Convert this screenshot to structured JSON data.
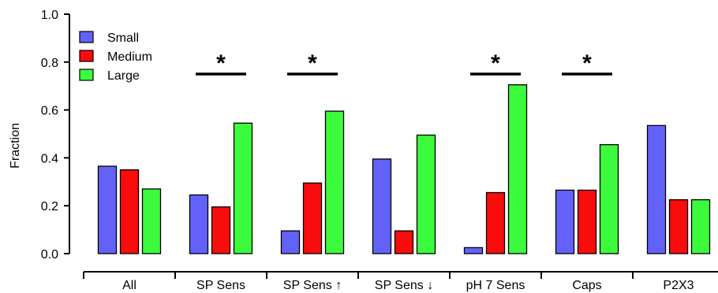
{
  "chart_data": {
    "type": "bar",
    "ylabel": "Fraction",
    "xlabel": "",
    "ylim": [
      0,
      1.0
    ],
    "yticks": [
      0.0,
      0.2,
      0.4,
      0.6,
      0.8,
      1.0
    ],
    "ytick_labels": [
      "0.0",
      "0.2",
      "0.4",
      "0.6",
      "0.8",
      "1.0"
    ],
    "categories": [
      "All",
      "SP Sens",
      "SP Sens ↑",
      "SP Sens ↓",
      "pH 7 Sens",
      "Caps",
      "P2X3"
    ],
    "series": [
      {
        "name": "Small",
        "color": "#6262fa",
        "values": [
          0.365,
          0.245,
          0.095,
          0.395,
          0.025,
          0.265,
          0.535
        ]
      },
      {
        "name": "Medium",
        "color": "#f80c0c",
        "values": [
          0.35,
          0.195,
          0.295,
          0.095,
          0.255,
          0.265,
          0.225
        ]
      },
      {
        "name": "Large",
        "color": "#3cfa3c",
        "values": [
          0.27,
          0.545,
          0.595,
          0.495,
          0.705,
          0.455,
          0.225
        ]
      }
    ],
    "significance": [
      {
        "category": "SP Sens",
        "label": "*"
      },
      {
        "category": "SP Sens ↑",
        "label": "*"
      },
      {
        "category": "pH 7 Sens",
        "label": "*"
      },
      {
        "category": "Caps",
        "label": "*"
      }
    ],
    "legend_placement": "top-left",
    "grid": false
  }
}
